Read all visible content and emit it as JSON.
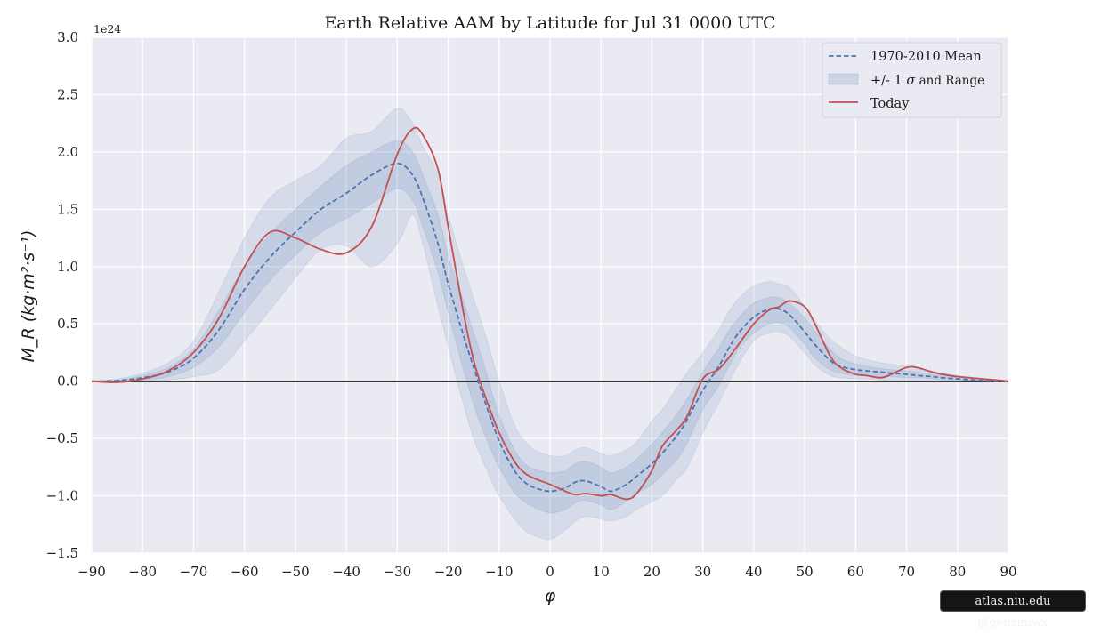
{
  "chart_data": {
    "type": "line",
    "title": "Earth Relative AAM by Latitude for Jul 31 0000 UTC",
    "xlabel": "φ",
    "ylabel": "M_R (kg·m²·s⁻¹)",
    "y_offset_label": "1e24",
    "xlim": [
      -90,
      90
    ],
    "ylim": [
      -1.5,
      3.0
    ],
    "x_ticks": [
      -90,
      -80,
      -70,
      -60,
      -50,
      -40,
      -30,
      -20,
      -10,
      0,
      10,
      20,
      30,
      40,
      50,
      60,
      70,
      80,
      90
    ],
    "x_tick_labels": [
      "−90",
      "−80",
      "−70",
      "−60",
      "−50",
      "−40",
      "−30",
      "−20",
      "−10",
      "0",
      "10",
      "20",
      "30",
      "40",
      "50",
      "60",
      "70",
      "80",
      "90"
    ],
    "y_ticks": [
      -1.5,
      -1.0,
      -0.5,
      0.0,
      0.5,
      1.0,
      1.5,
      2.0,
      2.5,
      3.0
    ],
    "y_tick_labels": [
      "−1.5",
      "−1.0",
      "−0.5",
      "0.0",
      "0.5",
      "1.0",
      "1.5",
      "2.0",
      "2.5",
      "3.0"
    ],
    "grid": true,
    "legend_position": "top-right",
    "legend": {
      "mean": "1970-2010 Mean",
      "band_prefix": "+/- 1 ",
      "band_sigma": "σ",
      "band_suffix": " and Range",
      "today": "Today"
    },
    "colors": {
      "mean": "#4c72b0",
      "today": "#c44e52",
      "band": "#4c72b0",
      "background": "#eaeaf2",
      "grid": "#ffffff",
      "zero_line": "#000000"
    },
    "x": [
      -90,
      -85,
      -80,
      -75,
      -70,
      -65,
      -60,
      -55,
      -50,
      -45,
      -40,
      -35,
      -30,
      -27,
      -25,
      -22,
      -20,
      -17,
      -15,
      -13,
      -10,
      -7,
      -5,
      -3,
      0,
      3,
      5,
      7,
      10,
      12,
      15,
      17,
      20,
      22,
      25,
      27,
      30,
      33,
      35,
      37,
      40,
      43,
      45,
      47,
      50,
      52,
      55,
      57,
      60,
      62,
      65,
      67,
      70,
      72,
      75,
      77,
      80,
      85,
      90
    ],
    "series": [
      {
        "name": "1970-2010 Mean",
        "values": [
          0.0,
          0.005,
          0.03,
          0.08,
          0.2,
          0.45,
          0.8,
          1.08,
          1.3,
          1.5,
          1.64,
          1.8,
          1.9,
          1.8,
          1.6,
          1.2,
          0.85,
          0.4,
          0.12,
          -0.15,
          -0.52,
          -0.78,
          -0.88,
          -0.93,
          -0.96,
          -0.93,
          -0.88,
          -0.87,
          -0.92,
          -0.96,
          -0.9,
          -0.83,
          -0.72,
          -0.63,
          -0.47,
          -0.33,
          -0.08,
          0.12,
          0.28,
          0.42,
          0.56,
          0.63,
          0.63,
          0.58,
          0.43,
          0.32,
          0.18,
          0.13,
          0.1,
          0.09,
          0.08,
          0.07,
          0.06,
          0.05,
          0.04,
          0.03,
          0.02,
          0.005,
          0.0
        ]
      },
      {
        "name": "Today",
        "values": [
          0.0,
          -0.01,
          0.02,
          0.09,
          0.25,
          0.55,
          1.0,
          1.3,
          1.25,
          1.15,
          1.12,
          1.35,
          1.98,
          2.2,
          2.15,
          1.85,
          1.35,
          0.6,
          0.18,
          -0.1,
          -0.45,
          -0.7,
          -0.8,
          -0.85,
          -0.9,
          -0.96,
          -0.99,
          -0.98,
          -1.0,
          -0.99,
          -1.03,
          -0.98,
          -0.78,
          -0.57,
          -0.42,
          -0.3,
          0.02,
          0.1,
          0.2,
          0.32,
          0.5,
          0.62,
          0.65,
          0.7,
          0.65,
          0.5,
          0.22,
          0.12,
          0.06,
          0.05,
          0.03,
          0.06,
          0.12,
          0.12,
          0.08,
          0.06,
          0.04,
          0.02,
          0.0
        ]
      },
      {
        "name": "+1 σ",
        "values": [
          0.0,
          0.01,
          0.05,
          0.12,
          0.28,
          0.62,
          1.0,
          1.28,
          1.5,
          1.7,
          1.88,
          2.0,
          2.1,
          2.0,
          1.8,
          1.45,
          1.1,
          0.7,
          0.42,
          0.15,
          -0.3,
          -0.6,
          -0.72,
          -0.77,
          -0.8,
          -0.78,
          -0.72,
          -0.7,
          -0.75,
          -0.8,
          -0.75,
          -0.68,
          -0.55,
          -0.45,
          -0.28,
          -0.15,
          0.08,
          0.28,
          0.43,
          0.55,
          0.68,
          0.73,
          0.73,
          0.68,
          0.55,
          0.44,
          0.28,
          0.2,
          0.15,
          0.13,
          0.11,
          0.1,
          0.09,
          0.08,
          0.06,
          0.05,
          0.03,
          0.01,
          0.0
        ]
      },
      {
        "name": "−1 σ",
        "values": [
          0.0,
          0.0,
          0.01,
          0.04,
          0.12,
          0.3,
          0.6,
          0.88,
          1.1,
          1.3,
          1.42,
          1.55,
          1.68,
          1.58,
          1.35,
          0.95,
          0.6,
          0.1,
          -0.2,
          -0.45,
          -0.75,
          -0.97,
          -1.05,
          -1.1,
          -1.15,
          -1.12,
          -1.06,
          -1.04,
          -1.08,
          -1.12,
          -1.05,
          -0.98,
          -0.9,
          -0.82,
          -0.68,
          -0.53,
          -0.25,
          -0.05,
          0.12,
          0.28,
          0.42,
          0.5,
          0.51,
          0.47,
          0.32,
          0.2,
          0.1,
          0.07,
          0.05,
          0.05,
          0.04,
          0.04,
          0.03,
          0.03,
          0.02,
          0.01,
          0.01,
          0.0,
          0.0
        ]
      },
      {
        "name": "Range max",
        "values": [
          0.0,
          0.02,
          0.07,
          0.16,
          0.35,
          0.78,
          1.25,
          1.6,
          1.75,
          1.88,
          2.12,
          2.18,
          2.38,
          2.25,
          2.05,
          1.8,
          1.45,
          1.0,
          0.72,
          0.45,
          0.0,
          -0.38,
          -0.52,
          -0.6,
          -0.65,
          -0.65,
          -0.6,
          -0.58,
          -0.63,
          -0.65,
          -0.6,
          -0.53,
          -0.35,
          -0.25,
          -0.05,
          0.08,
          0.25,
          0.44,
          0.6,
          0.72,
          0.83,
          0.87,
          0.85,
          0.82,
          0.65,
          0.53,
          0.37,
          0.3,
          0.22,
          0.19,
          0.16,
          0.15,
          0.13,
          0.11,
          0.09,
          0.07,
          0.05,
          0.02,
          0.0
        ]
      },
      {
        "name": "Range min",
        "values": [
          0.0,
          -0.01,
          0.0,
          0.01,
          0.04,
          0.1,
          0.35,
          0.62,
          0.9,
          1.15,
          1.18,
          1.0,
          1.2,
          1.45,
          1.2,
          0.65,
          0.3,
          -0.2,
          -0.5,
          -0.72,
          -1.0,
          -1.2,
          -1.3,
          -1.35,
          -1.38,
          -1.3,
          -1.22,
          -1.18,
          -1.2,
          -1.22,
          -1.18,
          -1.12,
          -1.05,
          -1.0,
          -0.85,
          -0.75,
          -0.45,
          -0.2,
          -0.02,
          0.15,
          0.35,
          0.42,
          0.43,
          0.39,
          0.25,
          0.14,
          0.05,
          0.03,
          0.02,
          0.02,
          0.01,
          0.01,
          0.01,
          0.0,
          0.0,
          0.0,
          0.0,
          0.0,
          0.0
        ]
      }
    ]
  },
  "credit": "atlas.niu.edu  @gensiniwx"
}
